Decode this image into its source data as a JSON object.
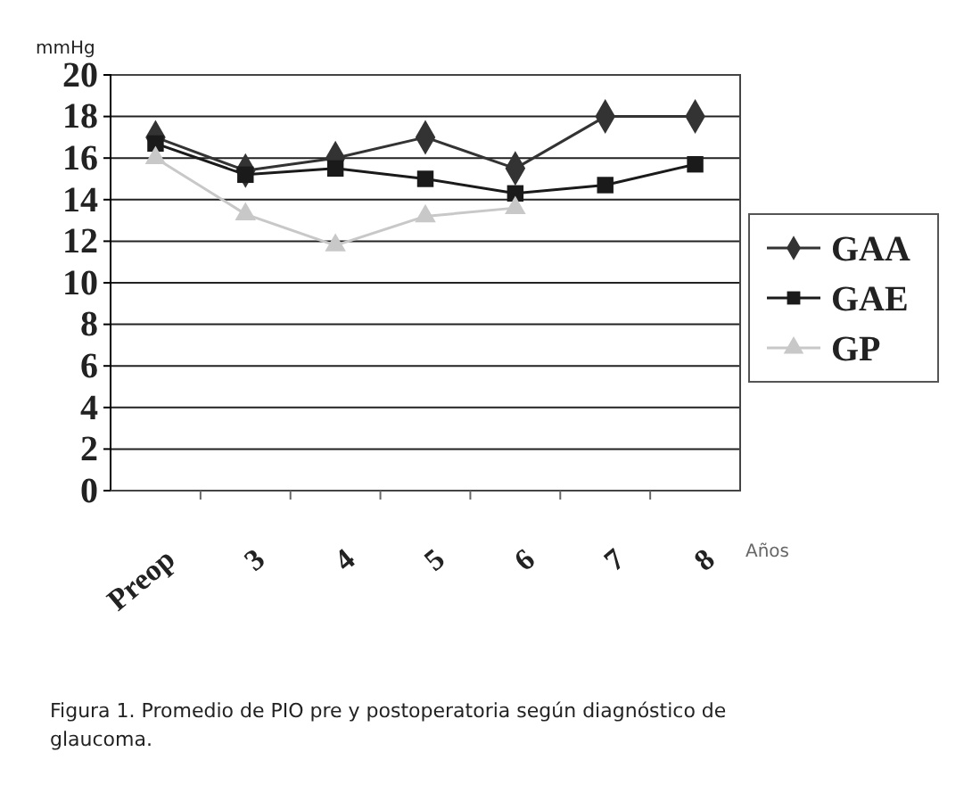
{
  "chart_data": {
    "type": "line",
    "ylabel": "mmHg",
    "xlabel": "Años",
    "categories": [
      "Preop",
      "3",
      "4",
      "5",
      "6",
      "7",
      "8"
    ],
    "series": [
      {
        "name": "GAA",
        "color": "#333333",
        "marker": "diamond",
        "values": [
          17,
          15.4,
          16,
          17,
          15.5,
          18,
          18
        ]
      },
      {
        "name": "GAE",
        "color": "#1a1a1a",
        "marker": "square",
        "values": [
          16.7,
          15.2,
          15.5,
          15,
          14.3,
          14.7,
          15.7
        ]
      },
      {
        "name": "GP",
        "color": "#c8c8c8",
        "marker": "triangle",
        "values": [
          16,
          13.3,
          11.8,
          13.2,
          13.6,
          null,
          null
        ]
      }
    ],
    "ylim": [
      0,
      20
    ],
    "yticks": [
      0,
      2,
      4,
      6,
      8,
      10,
      12,
      14,
      16,
      18,
      20
    ],
    "grid": "y",
    "legend": "right",
    "annotations": [
      "Figura 1. Promedio de PIO pre y postoperatoria según diagnóstico de glaucoma."
    ]
  }
}
